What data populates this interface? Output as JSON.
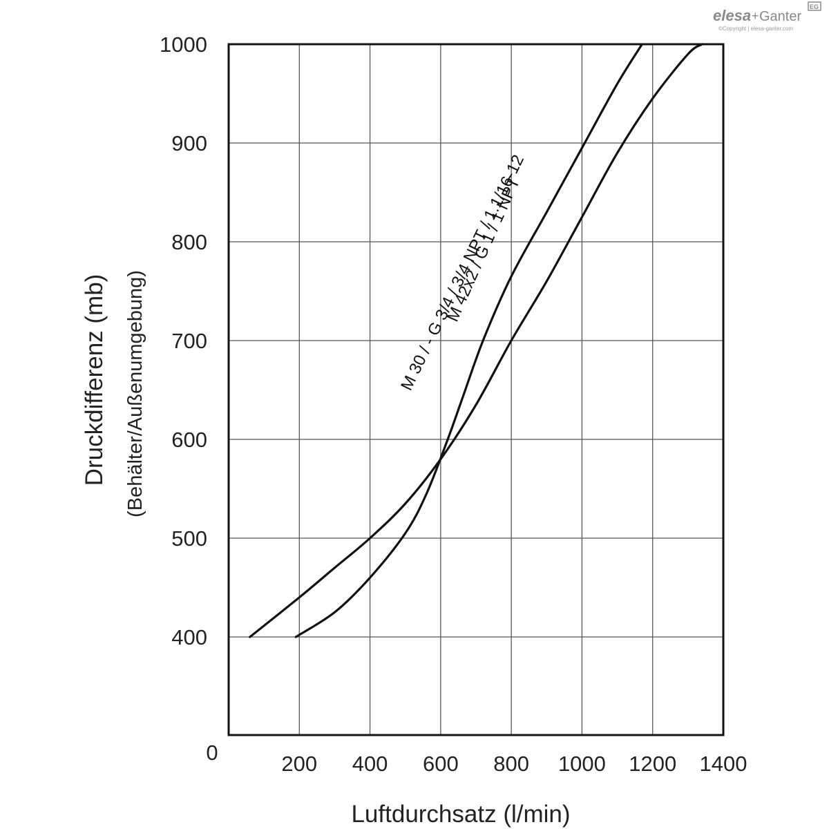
{
  "logo": {
    "brand": "elesa",
    "plus": "+",
    "partner": "Ganter",
    "badge": "EG",
    "copyright": "©Copyright | elesa-ganter.com"
  },
  "chart_data": {
    "type": "line",
    "xlabel": "Luftdurchsatz (l/min)",
    "ylabel": "Druckdifferenz (mb)",
    "ylabel_sub": "(Behälter/Außenumgebung)",
    "xlim": [
      0,
      1400
    ],
    "ylim": [
      0,
      1000
    ],
    "x_ticks": [
      "200",
      "400",
      "600",
      "800",
      "1000",
      "1200",
      "1400"
    ],
    "y_ticks": [
      "400",
      "500",
      "600",
      "700",
      "800",
      "900",
      "1000"
    ],
    "origin_label": "0",
    "grid": true,
    "series": [
      {
        "name": "M 42x2 / G 1 / 1 NPT",
        "x": [
          190,
          300,
          400,
          500,
          560,
          620,
          660,
          720,
          800,
          900,
          1000,
          1100,
          1170
        ],
        "y": [
          400,
          425,
          460,
          505,
          545,
          600,
          640,
          700,
          765,
          830,
          895,
          960,
          1000
        ]
      },
      {
        "name": "M 30 / - G 3/4 / 3/4 NPT / 1.1/16-12",
        "x": [
          60,
          200,
          300,
          400,
          500,
          600,
          700,
          800,
          900,
          1000,
          1100,
          1200,
          1300,
          1340
        ],
        "y": [
          400,
          440,
          470,
          500,
          535,
          580,
          635,
          700,
          760,
          825,
          890,
          945,
          990,
          1000
        ]
      }
    ]
  }
}
